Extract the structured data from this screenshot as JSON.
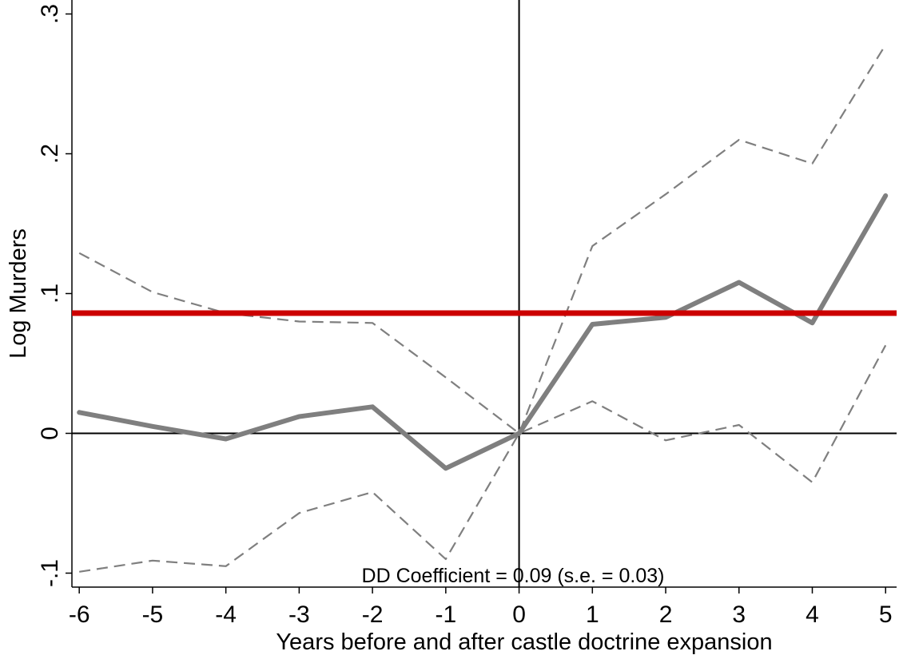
{
  "chart_data": {
    "type": "line",
    "title": "",
    "xlabel": "Years before and after castle doctrine expansion",
    "ylabel": "Log Murders",
    "x": [
      -6,
      -5,
      -4,
      -3,
      -2,
      -1,
      0,
      1,
      2,
      3,
      4,
      5
    ],
    "x_ticks": [
      "-6",
      "-5",
      "-4",
      "-3",
      "-2",
      "-1",
      "0",
      "1",
      "2",
      "3",
      "4",
      "5"
    ],
    "y_ticks": [
      {
        "value": -0.1,
        "label": "-.1"
      },
      {
        "value": 0,
        "label": "0"
      },
      {
        "value": 0.1,
        "label": ".1"
      },
      {
        "value": 0.2,
        "label": ".2"
      },
      {
        "value": 0.3,
        "label": ".3"
      }
    ],
    "xlim": [
      -6.1,
      5.15
    ],
    "ylim": [
      -0.11,
      0.31
    ],
    "series": [
      {
        "role": "estimate",
        "style": "solid-thick",
        "color": "#7f7f7f",
        "values": [
          0.015,
          0.005,
          -0.004,
          0.012,
          0.019,
          -0.025,
          0.0,
          0.078,
          0.083,
          0.108,
          0.079,
          0.17
        ]
      },
      {
        "role": "upper",
        "style": "dashed",
        "color": "#7f7f7f",
        "values": [
          0.129,
          0.101,
          0.086,
          0.08,
          0.079,
          0.04,
          0.0,
          0.134,
          0.171,
          0.21,
          0.193,
          0.278
        ]
      },
      {
        "role": "lower",
        "style": "dashed",
        "color": "#7f7f7f",
        "values": [
          -0.099,
          -0.091,
          -0.095,
          -0.057,
          -0.042,
          -0.09,
          0.0,
          0.023,
          -0.005,
          0.006,
          -0.035,
          0.063
        ]
      }
    ],
    "reference_lines": {
      "dd_line": {
        "y": 0.086,
        "color": "#cc0000"
      },
      "zero_line": {
        "y": 0
      },
      "event_line": {
        "x": 0
      }
    },
    "annotation": "DD Coefficient = 0.09 (s.e. = 0.03)",
    "grid": false,
    "legend": "none"
  }
}
